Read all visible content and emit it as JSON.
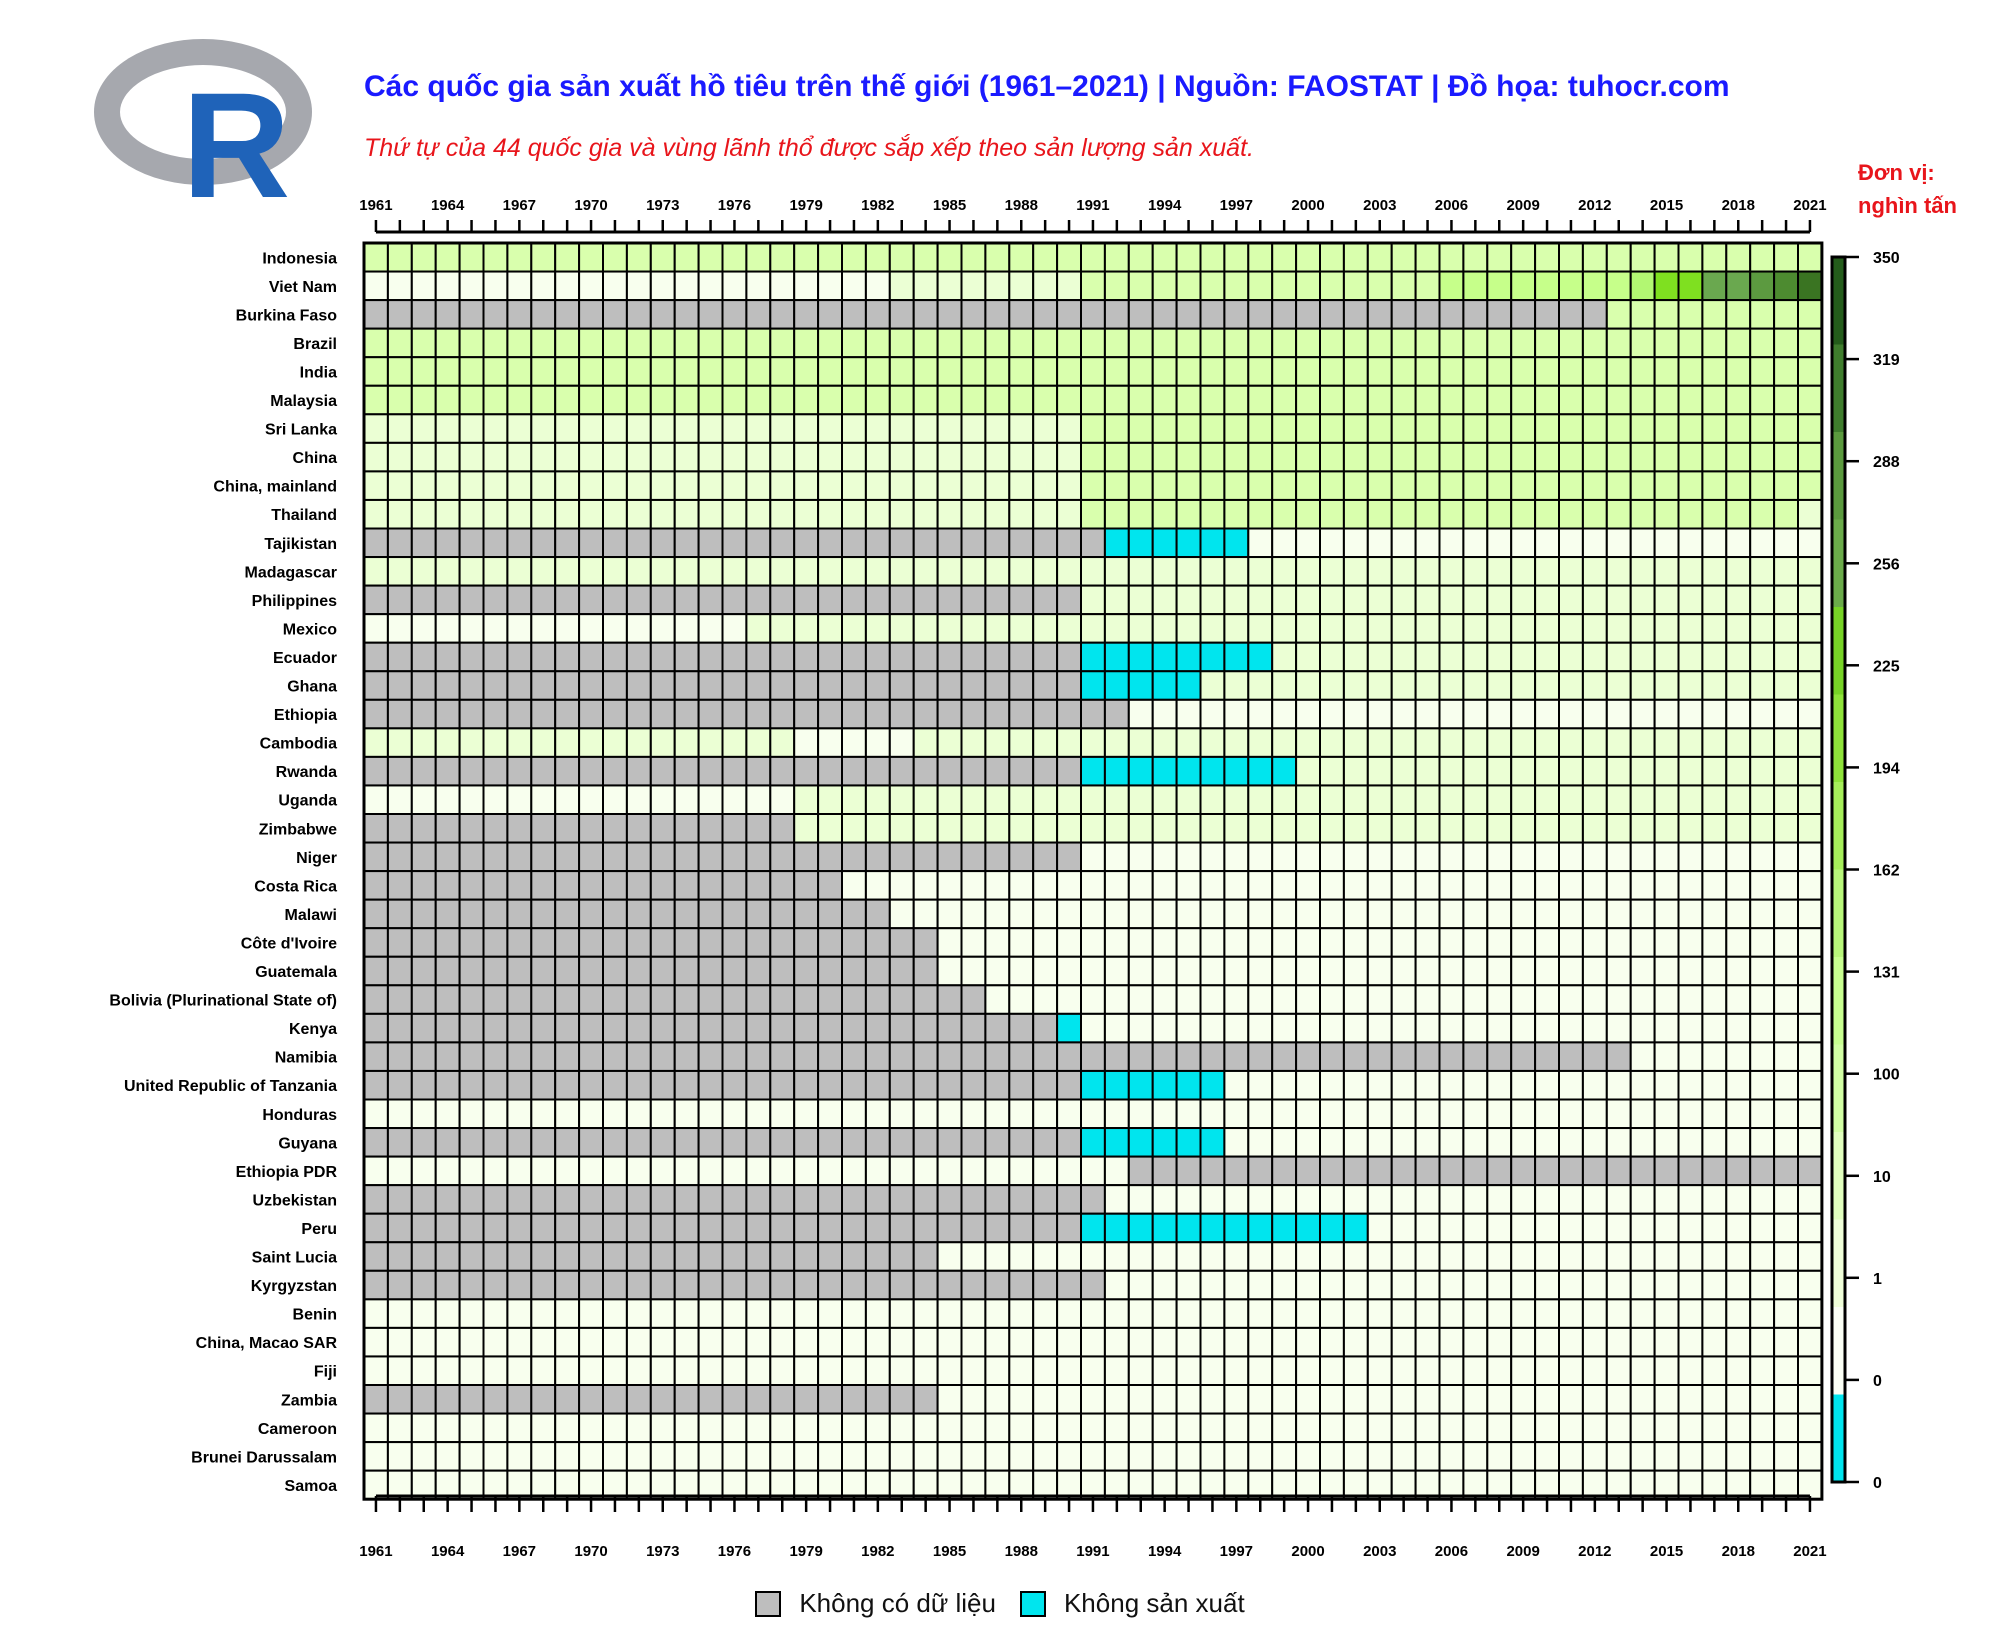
{
  "header": {
    "title": "Các quốc gia sản xuất hồ tiêu trên thế giới (1961–2021) | Nguồn: FAOSTAT | Đồ họa: tuhocr.com",
    "subtitle": "Thứ tự của 44 quốc gia và vùng lãnh thổ được sắp xếp theo sản lượng sản xuất.",
    "unit_line1": "Đơn vị:",
    "unit_line2": "nghìn tấn"
  },
  "logo": {
    "letter": "R",
    "ring_color": "#a6a8ae",
    "letter_color": "#1f63b9"
  },
  "legend": {
    "no_data": {
      "label": "Không có dữ liệu",
      "color": "#bebebe"
    },
    "no_production": {
      "label": "Không sản xuất",
      "color": "#00e5ee"
    }
  },
  "chart_data": {
    "type": "heatmap",
    "x": {
      "start_year": 1961,
      "end_year": 2021,
      "tick_labels": [
        "1961",
        "1964",
        "1967",
        "1970",
        "1973",
        "1976",
        "1979",
        "1982",
        "1985",
        "1988",
        "1991",
        "1994",
        "1997",
        "2000",
        "2003",
        "2006",
        "2009",
        "2012",
        "2015",
        "2018",
        "2021"
      ]
    },
    "colorbar": {
      "tick_labels": [
        "350",
        "319",
        "288",
        "256",
        "225",
        "194",
        "162",
        "131",
        "100",
        "10",
        "1",
        "0",
        "0"
      ],
      "colors": [
        "#00e5ee",
        "#fbfff5",
        "#f0ffd9",
        "#e1ffbe",
        "#d2ffa4",
        "#c8ff90",
        "#b8f77a",
        "#a6ee5a",
        "#8fe33a",
        "#77d326",
        "#6bab4a",
        "#5b9a3e",
        "#3f7d2d",
        "#245c1b"
      ]
    },
    "value_levels": {
      "0": "Không có dữ liệu",
      "1": "Không sản xuất",
      "2": "0–1",
      "3": "1–10",
      "4": "10–100",
      "5": "100–131",
      "6": "131–162",
      "7": "162–194",
      "8": "194–225",
      "9": "225–256",
      "10": "256–288"
    },
    "rows": [
      {
        "name": "Indonesia",
        "segments": [
          [
            1961,
            2021,
            4
          ]
        ]
      },
      {
        "name": "Viet Nam",
        "segments": [
          [
            1961,
            1982,
            2
          ],
          [
            1983,
            1990,
            3
          ],
          [
            1991,
            2005,
            4
          ],
          [
            2006,
            2013,
            5
          ],
          [
            2014,
            2014,
            6
          ],
          [
            2015,
            2016,
            8
          ],
          [
            2017,
            2021,
            9
          ]
        ]
      },
      {
        "name": "Burkina Faso",
        "segments": [
          [
            1961,
            2012,
            0
          ],
          [
            2013,
            2021,
            4
          ]
        ]
      },
      {
        "name": "Brazil",
        "segments": [
          [
            1961,
            2021,
            4
          ]
        ]
      },
      {
        "name": "India",
        "segments": [
          [
            1961,
            2021,
            4
          ]
        ]
      },
      {
        "name": "Malaysia",
        "segments": [
          [
            1961,
            2021,
            4
          ]
        ]
      },
      {
        "name": "Sri Lanka",
        "segments": [
          [
            1961,
            1990,
            3
          ],
          [
            1991,
            2021,
            4
          ]
        ]
      },
      {
        "name": "China",
        "segments": [
          [
            1961,
            1990,
            3
          ],
          [
            1991,
            2021,
            4
          ]
        ]
      },
      {
        "name": "China, mainland",
        "segments": [
          [
            1961,
            1990,
            3
          ],
          [
            1991,
            2021,
            4
          ]
        ]
      },
      {
        "name": "Thailand",
        "segments": [
          [
            1961,
            1990,
            3
          ],
          [
            1991,
            2020,
            4
          ],
          [
            2021,
            2021,
            3
          ]
        ]
      },
      {
        "name": "Tajikistan",
        "segments": [
          [
            1961,
            1991,
            0
          ],
          [
            1992,
            1997,
            1
          ],
          [
            1998,
            2021,
            2
          ]
        ]
      },
      {
        "name": "Madagascar",
        "segments": [
          [
            1961,
            2021,
            3
          ]
        ]
      },
      {
        "name": "Philippines",
        "segments": [
          [
            1961,
            1990,
            0
          ],
          [
            1991,
            2021,
            3
          ]
        ]
      },
      {
        "name": "Mexico",
        "segments": [
          [
            1961,
            1976,
            2
          ],
          [
            1977,
            2021,
            3
          ]
        ]
      },
      {
        "name": "Ecuador",
        "segments": [
          [
            1961,
            1990,
            0
          ],
          [
            1991,
            1998,
            1
          ],
          [
            1999,
            2021,
            3
          ]
        ]
      },
      {
        "name": "Ghana",
        "segments": [
          [
            1961,
            1990,
            0
          ],
          [
            1991,
            1995,
            1
          ],
          [
            1996,
            2021,
            3
          ]
        ]
      },
      {
        "name": "Ethiopia",
        "segments": [
          [
            1961,
            1992,
            0
          ],
          [
            1993,
            2021,
            2
          ]
        ]
      },
      {
        "name": "Cambodia",
        "segments": [
          [
            1961,
            1978,
            3
          ],
          [
            1979,
            1983,
            2
          ],
          [
            1984,
            2021,
            3
          ]
        ]
      },
      {
        "name": "Rwanda",
        "segments": [
          [
            1961,
            1990,
            0
          ],
          [
            1991,
            1999,
            1
          ],
          [
            2000,
            2021,
            3
          ]
        ]
      },
      {
        "name": "Uganda",
        "segments": [
          [
            1961,
            1978,
            2
          ],
          [
            1979,
            2021,
            3
          ]
        ]
      },
      {
        "name": "Zimbabwe",
        "segments": [
          [
            1961,
            1978,
            0
          ],
          [
            1979,
            2021,
            3
          ]
        ]
      },
      {
        "name": "Niger",
        "segments": [
          [
            1961,
            1990,
            0
          ],
          [
            1991,
            2021,
            2
          ]
        ]
      },
      {
        "name": "Costa Rica",
        "segments": [
          [
            1961,
            1980,
            0
          ],
          [
            1981,
            2021,
            2
          ]
        ]
      },
      {
        "name": "Malawi",
        "segments": [
          [
            1961,
            1982,
            0
          ],
          [
            1983,
            2021,
            2
          ]
        ]
      },
      {
        "name": "Côte d'Ivoire",
        "segments": [
          [
            1961,
            1984,
            0
          ],
          [
            1985,
            2021,
            2
          ]
        ]
      },
      {
        "name": "Guatemala",
        "segments": [
          [
            1961,
            1984,
            0
          ],
          [
            1985,
            2021,
            2
          ]
        ]
      },
      {
        "name": "Bolivia (Plurinational State of)",
        "segments": [
          [
            1961,
            1986,
            0
          ],
          [
            1987,
            2021,
            2
          ]
        ]
      },
      {
        "name": "Kenya",
        "segments": [
          [
            1961,
            1989,
            0
          ],
          [
            1990,
            1990,
            1
          ],
          [
            1991,
            2021,
            2
          ]
        ]
      },
      {
        "name": "Namibia",
        "segments": [
          [
            1961,
            2013,
            0
          ],
          [
            2014,
            2021,
            2
          ]
        ]
      },
      {
        "name": "United Republic of Tanzania",
        "segments": [
          [
            1961,
            1990,
            0
          ],
          [
            1991,
            1996,
            1
          ],
          [
            1997,
            2021,
            2
          ]
        ]
      },
      {
        "name": "Honduras",
        "segments": [
          [
            1961,
            2021,
            2
          ]
        ]
      },
      {
        "name": "Guyana",
        "segments": [
          [
            1961,
            1990,
            0
          ],
          [
            1991,
            1996,
            1
          ],
          [
            1997,
            2021,
            2
          ]
        ]
      },
      {
        "name": "Ethiopia PDR",
        "segments": [
          [
            1961,
            1992,
            2
          ],
          [
            1993,
            2021,
            0
          ]
        ]
      },
      {
        "name": "Uzbekistan",
        "segments": [
          [
            1961,
            1991,
            0
          ],
          [
            1992,
            2021,
            2
          ]
        ]
      },
      {
        "name": "Peru",
        "segments": [
          [
            1961,
            1990,
            0
          ],
          [
            1991,
            2002,
            1
          ],
          [
            2003,
            2021,
            2
          ]
        ]
      },
      {
        "name": "Saint Lucia",
        "segments": [
          [
            1961,
            1984,
            0
          ],
          [
            1985,
            2021,
            2
          ]
        ]
      },
      {
        "name": "Kyrgyzstan",
        "segments": [
          [
            1961,
            1991,
            0
          ],
          [
            1992,
            2021,
            2
          ]
        ]
      },
      {
        "name": "Benin",
        "segments": [
          [
            1961,
            2021,
            2
          ]
        ]
      },
      {
        "name": "China, Macao SAR",
        "segments": [
          [
            1961,
            2021,
            2
          ]
        ]
      },
      {
        "name": "Fiji",
        "segments": [
          [
            1961,
            2021,
            2
          ]
        ]
      },
      {
        "name": "Zambia",
        "segments": [
          [
            1961,
            1984,
            0
          ],
          [
            1985,
            2021,
            2
          ]
        ]
      },
      {
        "name": "Cameroon",
        "segments": [
          [
            1961,
            2021,
            2
          ]
        ]
      },
      {
        "name": "Brunei Darussalam",
        "segments": [
          [
            1961,
            2021,
            2
          ]
        ]
      },
      {
        "name": "Samoa",
        "segments": [
          [
            1961,
            2021,
            2
          ]
        ]
      }
    ]
  }
}
